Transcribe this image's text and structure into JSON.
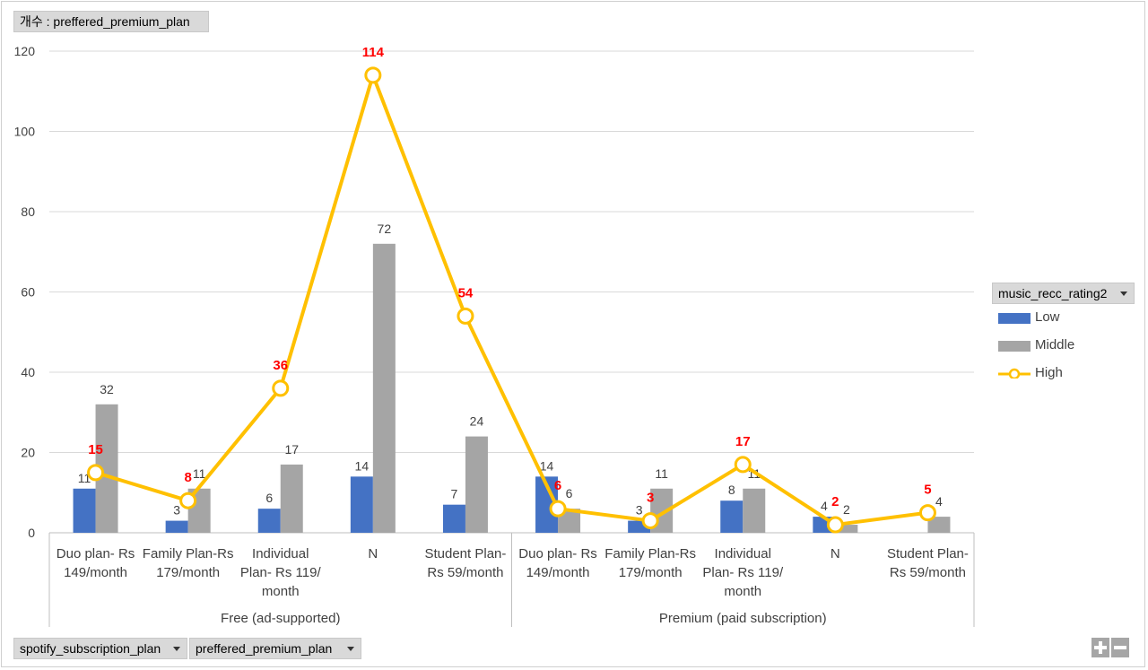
{
  "data_field_button": "개수 : preffered_premium_plan",
  "legend_field_button": "music_recc_rating2",
  "row_field_buttons": [
    "spotify_subscription_plan",
    "preffered_premium_plan"
  ],
  "colors": {
    "low": "#4472c4",
    "middle": "#a5a5a5",
    "high": "#ffc000",
    "high_label": "#ff0000",
    "grid": "#d9d9d9"
  },
  "icons": {
    "zoom_in": "plus-icon",
    "zoom_out": "minus-icon"
  },
  "chart_data": {
    "type": "bar",
    "title": "",
    "xlabel": "",
    "ylabel": "",
    "ylim": [
      0,
      120
    ],
    "yticks": [
      0,
      20,
      40,
      60,
      80,
      100,
      120
    ],
    "grid": true,
    "legend_position": "right",
    "groups": [
      {
        "label": "Free (ad-supported)",
        "categories": [
          [
            "Duo plan- Rs",
            "149/month"
          ],
          [
            "Family Plan-Rs",
            "179/month"
          ],
          [
            "Individual",
            "Plan- Rs 119/",
            "month"
          ],
          [
            "N"
          ],
          [
            "Student Plan-",
            "Rs 59/month"
          ]
        ]
      },
      {
        "label": "Premium (paid subscription)",
        "categories": [
          [
            "Duo plan- Rs",
            "149/month"
          ],
          [
            "Family Plan-Rs",
            "179/month"
          ],
          [
            "Individual",
            "Plan- Rs 119/",
            "month"
          ],
          [
            "N"
          ],
          [
            "Student Plan-",
            "Rs 59/month"
          ]
        ]
      }
    ],
    "series": [
      {
        "name": "Low",
        "type": "bar",
        "values": [
          11,
          3,
          6,
          14,
          7,
          14,
          3,
          8,
          4,
          null
        ]
      },
      {
        "name": "Middle",
        "type": "bar",
        "values": [
          32,
          11,
          17,
          72,
          24,
          6,
          11,
          11,
          2,
          4
        ]
      },
      {
        "name": "High",
        "type": "line",
        "values": [
          15,
          8,
          36,
          114,
          54,
          6,
          3,
          17,
          2,
          5
        ]
      }
    ]
  }
}
